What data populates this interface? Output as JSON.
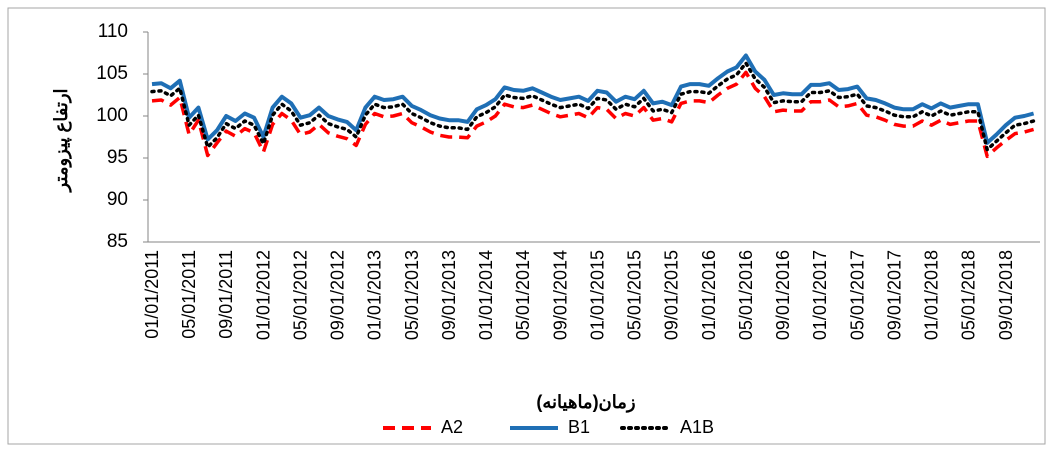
{
  "chart_data": {
    "type": "line",
    "y_label": "ارتفاع پیزومتر",
    "x_label": "زمان(ماهیانه)",
    "categories": [
      "01/01/2011",
      null,
      null,
      null,
      "05/01/2011",
      null,
      null,
      null,
      "09/01/2011",
      null,
      null,
      null,
      "01/01/2012",
      null,
      null,
      null,
      "05/01/2012",
      null,
      null,
      null,
      "09/01/2012",
      null,
      null,
      null,
      "01/01/2013",
      null,
      null,
      null,
      "05/01/2013",
      null,
      null,
      null,
      "09/01/2013",
      null,
      null,
      null,
      "01/01/2014",
      null,
      null,
      null,
      "05/01/2014",
      null,
      null,
      null,
      "09/01/2014",
      null,
      null,
      null,
      "01/01/2015",
      null,
      null,
      null,
      "05/01/2015",
      null,
      null,
      null,
      "09/01/2015",
      null,
      null,
      null,
      "01/01/2016",
      null,
      null,
      null,
      "05/01/2016",
      null,
      null,
      null,
      "09/01/2016",
      null,
      null,
      null,
      "01/01/2017",
      null,
      null,
      null,
      "05/01/2017",
      null,
      null,
      null,
      "09/01/2017",
      null,
      null,
      null,
      "01/01/2018",
      null,
      null,
      null,
      "05/01/2018",
      null,
      null,
      null,
      "09/01/2018",
      null,
      null,
      null
    ],
    "series": [
      {
        "name": "A2",
        "color": "#ff0000",
        "dash": "dashed",
        "values": [
          101.8,
          101.9,
          101.3,
          102.2,
          97.8,
          99.5,
          95.3,
          96.8,
          98.2,
          97.6,
          98.5,
          98.0,
          95.7,
          99,
          100.3,
          99.5,
          97.8,
          98.1,
          99,
          98,
          97.6,
          97.3,
          96.5,
          99,
          100.3,
          99.9,
          100,
          100.3,
          99.2,
          98.7,
          98.1,
          97.7,
          97.5,
          97.5,
          97.4,
          98.8,
          99.3,
          100,
          101.4,
          101.1,
          101,
          101.3,
          100.8,
          100.3,
          99.9,
          100.1,
          100.3,
          99.8,
          101,
          100.8,
          99.7,
          100.3,
          100,
          101,
          99.5,
          99.7,
          99.3,
          101.5,
          101.8,
          101.8,
          101.6,
          102.5,
          103.3,
          103.8,
          105.2,
          103.3,
          102.3,
          100.5,
          100.7,
          100.6,
          100.6,
          101.7,
          101.7,
          101.9,
          101.1,
          101.2,
          101.5,
          100.1,
          99.9,
          99.5,
          99,
          98.8,
          98.8,
          99.4,
          98.9,
          99.5,
          99,
          99.2,
          99.4,
          99.4,
          95.2,
          96.2,
          97.1,
          97.9,
          98.1,
          98.4
        ]
      },
      {
        "name": "B1",
        "color": "#1f6fb5",
        "dash": "solid",
        "values": [
          103.8,
          103.9,
          103.3,
          104.2,
          99.8,
          101,
          97.2,
          98.3,
          100,
          99.4,
          100.3,
          99.8,
          97.5,
          101,
          102.3,
          101.5,
          99.8,
          100.1,
          101,
          100,
          99.6,
          99.3,
          98.3,
          101,
          102.3,
          101.9,
          102,
          102.3,
          101.2,
          100.7,
          100.1,
          99.7,
          99.5,
          99.5,
          99.3,
          100.8,
          101.3,
          102,
          103.4,
          103.1,
          103,
          103.3,
          102.8,
          102.3,
          101.9,
          102.1,
          102.3,
          101.8,
          103,
          102.8,
          101.7,
          102.3,
          102,
          103,
          101.5,
          101.7,
          101.3,
          103.5,
          103.8,
          103.8,
          103.6,
          104.5,
          105.3,
          105.8,
          107.2,
          105.3,
          104.3,
          102.5,
          102.7,
          102.6,
          102.6,
          103.7,
          103.7,
          103.9,
          103.1,
          103.2,
          103.5,
          102.1,
          101.9,
          101.5,
          101,
          100.8,
          100.8,
          101.4,
          100.9,
          101.5,
          101,
          101.2,
          101.4,
          101.4,
          96.8,
          97.8,
          98.9,
          99.8,
          100,
          100.3
        ]
      },
      {
        "name": "A1B",
        "color": "#000000",
        "dash": "dotted",
        "values": [
          102.9,
          103,
          102.4,
          103.3,
          98.9,
          100.1,
          96.3,
          97.4,
          99.1,
          98.5,
          99.4,
          98.9,
          96.7,
          100.1,
          101.4,
          100.6,
          98.9,
          99.2,
          100.1,
          99.1,
          98.7,
          98.4,
          97.5,
          100.1,
          101.4,
          101,
          101.1,
          101.4,
          100.3,
          99.8,
          99.2,
          98.8,
          98.6,
          98.6,
          98.4,
          99.9,
          100.4,
          101.1,
          102.5,
          102.2,
          102.1,
          102.4,
          101.9,
          101.4,
          101,
          101.2,
          101.4,
          100.9,
          102.1,
          101.9,
          100.8,
          101.4,
          101.1,
          102.1,
          100.6,
          100.8,
          100.4,
          102.6,
          102.9,
          102.9,
          102.7,
          103.6,
          104.4,
          104.9,
          106.3,
          104.4,
          103.4,
          101.6,
          101.8,
          101.7,
          101.7,
          102.8,
          102.8,
          103,
          102.2,
          102.3,
          102.6,
          101.2,
          101,
          100.6,
          100.1,
          99.9,
          99.9,
          100.5,
          100,
          100.6,
          100.1,
          100.3,
          100.5,
          100.5,
          96,
          97,
          98,
          98.9,
          99.1,
          99.4
        ]
      }
    ],
    "ylim": [
      85,
      110
    ],
    "yticks": [
      85,
      90,
      95,
      100,
      105,
      110
    ],
    "grid": false,
    "legend": "bottom"
  }
}
